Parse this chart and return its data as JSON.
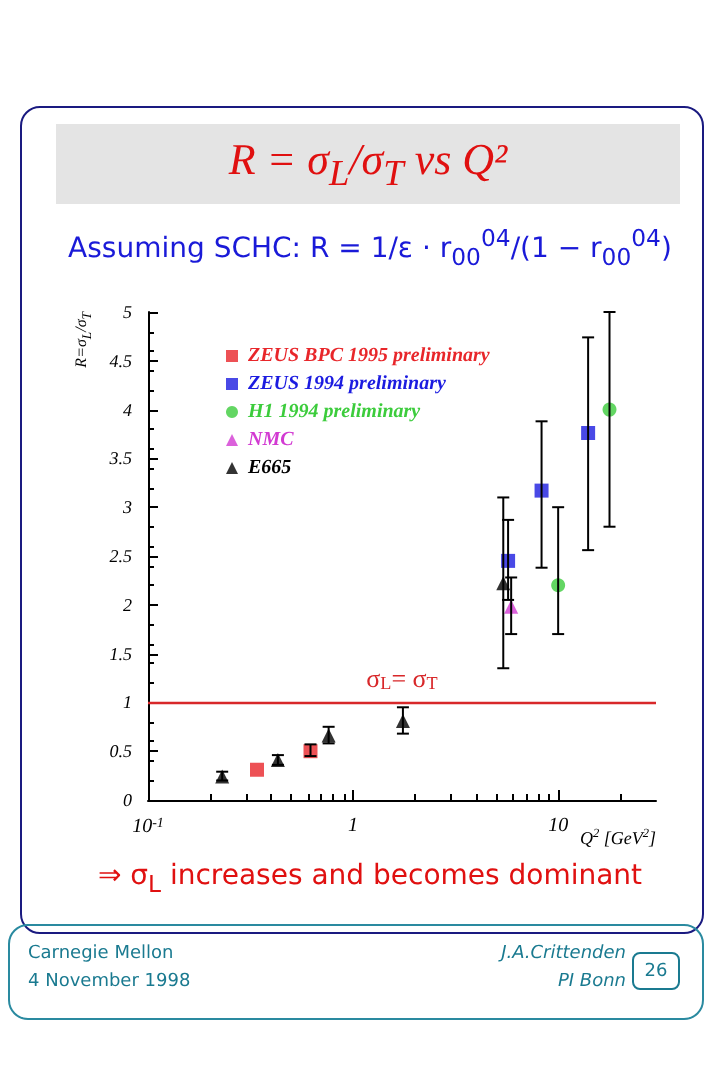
{
  "chart_data": {
    "type": "scatter",
    "title": "R = σ$_{L}$/σ$_{T}$ vs Q²",
    "subtitle": "Assuming SCHC: R = 1/ε · r$_{00}$$^{04}$/(1 − r$_{00}$$^{04}$)",
    "xlabel": "Q$^{2}$ [GeV$^{2}$]",
    "ylabel": "R=σ$_{L}$/σ$_{T}$",
    "log": "x",
    "xlim": [
      0.1,
      30
    ],
    "ylim": [
      0,
      5
    ],
    "xticks": [
      {
        "value": 0.1,
        "label": "10$^{-1}$"
      },
      1,
      10
    ],
    "yticks": [
      0,
      0.5,
      1,
      1.5,
      2,
      2.5,
      3,
      3.5,
      4,
      4.5,
      5
    ],
    "grid": false,
    "legend": "top left",
    "series": [
      {
        "name": "ZEUS BPC 1995 preliminary",
        "color": "#e8262a",
        "marker": "square",
        "x": [
          0.34,
          0.62
        ],
        "values": [
          0.31,
          0.5
        ],
        "errors": [
          null,
          [
            0.45,
            0.57
          ]
        ]
      },
      {
        "name": "ZEUS 1994 preliminary",
        "color": "#1c1ce0",
        "marker": "square",
        "x": [
          5.7,
          8.3,
          14
        ],
        "values": [
          2.45,
          3.17,
          3.76
        ],
        "errors": [
          [
            2.05,
            2.87
          ],
          [
            2.38,
            3.88
          ],
          [
            2.56,
            4.74
          ]
        ]
      },
      {
        "name": "H1 1994 preliminary",
        "color": "#3ccc3c",
        "marker": "circle",
        "x": [
          10,
          17.8
        ],
        "values": [
          2.2,
          4.0
        ],
        "errors": [
          [
            1.7,
            3.0
          ],
          [
            2.8,
            5.0
          ]
        ]
      },
      {
        "name": "NMC",
        "color": "#d23ad2",
        "marker": "triangle",
        "x": [
          5.9
        ],
        "values": [
          1.98
        ],
        "errors": [
          [
            1.7,
            2.28
          ]
        ]
      },
      {
        "name": "E665",
        "color": "#000000",
        "marker": "triangle",
        "x": [
          0.23,
          0.43,
          0.76,
          1.75,
          5.4
        ],
        "values": [
          0.24,
          0.41,
          0.66,
          0.81,
          2.22
        ],
        "errors": [
          [
            0.2,
            0.29
          ],
          [
            0.36,
            0.46
          ],
          [
            0.58,
            0.75
          ],
          [
            0.68,
            0.95
          ],
          [
            1.35,
            3.1
          ]
        ]
      }
    ],
    "ref_lines": [
      {
        "axis": "y",
        "value": 1,
        "label": "σ$_{L}$= σ$_{T}$",
        "color": "#d8282a",
        "line_style": "solid"
      }
    ],
    "annotations": [
      "⇒ σ$_{L}$ increases and becomes dominant",
      "Carnegie Mellon",
      "4 November 1998",
      "J.A.Crittenden",
      "PI Bonn",
      "26"
    ]
  }
}
